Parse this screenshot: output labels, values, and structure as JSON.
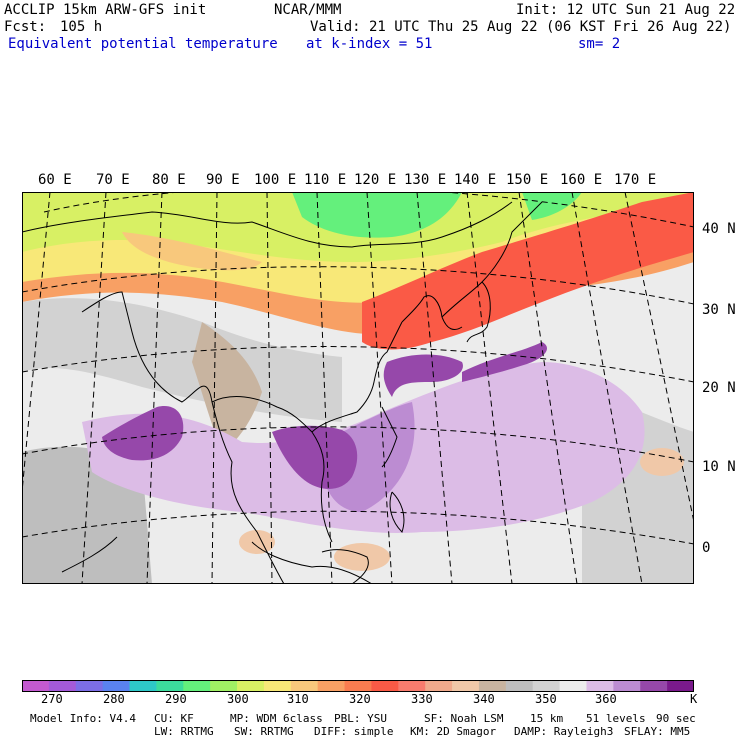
{
  "header": {
    "model": "ACCLIP 15km ARW-GFS init",
    "org": "NCAR/MMM",
    "init": "Init: 12 UTC Sun 21 Aug 22",
    "fcst_label": "Fcst:",
    "fcst_value": "105 h",
    "valid": "Valid: 21 UTC Thu 25 Aug 22 (06 KST Fri 26 Aug 22)",
    "field": "Equivalent potential temperature",
    "level": "at k-index =  51",
    "smooth": "sm= 2"
  },
  "map": {
    "lon_labels": [
      "60 E",
      "70 E",
      "80 E",
      "90 E",
      "100 E",
      "110 E",
      "120 E",
      "130 E",
      "140 E",
      "150 E",
      "160 E",
      "170 E"
    ],
    "lat_labels": [
      "40 N",
      "30 N",
      "20 N",
      "10 N",
      "0"
    ]
  },
  "colorbar": {
    "unit": "K",
    "tick_labels": [
      "270",
      "280",
      "290",
      "300",
      "310",
      "320",
      "330",
      "340",
      "350",
      "360"
    ],
    "colors": [
      "#c45ad0",
      "#a45ad8",
      "#7c6ee6",
      "#5a82f0",
      "#2ec8c8",
      "#3cdc9c",
      "#64f07c",
      "#a0f064",
      "#d8f064",
      "#f8e878",
      "#f8c87c",
      "#f8a064",
      "#fa7c50",
      "#fa5a46",
      "#f87c6e",
      "#f0aa8c",
      "#f0c8a8",
      "#c8b4a0",
      "#bebebe",
      "#d2d2d2",
      "#ececec",
      "#dcbce6",
      "#bc8cd2",
      "#9648aa",
      "#7a1a8c"
    ]
  },
  "footer": {
    "line1": [
      "Model Info: V4.4",
      "CU: KF",
      "MP: WDM 6class",
      "PBL: YSU",
      "SF: Noah LSM",
      "15 km",
      "51 levels",
      "90 sec"
    ],
    "line2": [
      "LW: RRTMG",
      "SW: RRTMG",
      "DIFF: simple",
      "KM: 2D Smagor",
      "DAMP: Rayleigh3",
      "SFLAY: MM5"
    ]
  }
}
